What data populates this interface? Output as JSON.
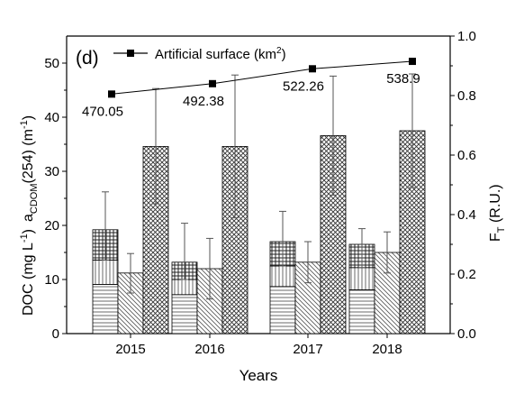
{
  "chart_data": {
    "type": "bar",
    "panel_label": "(d)",
    "categories": [
      "2015",
      "2016",
      "2017",
      "2018"
    ],
    "xlabel": "Years",
    "ylabel_left_top": {
      "main": "a",
      "sub": "CDOM",
      "rest": "(254) (m",
      "sup": "-1",
      "close": ")"
    },
    "ylabel_left_bottom": {
      "main": "DOC  (mg L",
      "sup": "-1",
      "close": ")"
    },
    "ylabel_right": {
      "main": "F",
      "sub": "T",
      "rest": " (R.U.)"
    },
    "ylim_left": [
      0,
      55
    ],
    "ylim_right": [
      0.0,
      1.0
    ],
    "yticks_left": [
      "0",
      "10",
      "20",
      "30",
      "40",
      "50"
    ],
    "yticks_right": [
      "0.0",
      "0.2",
      "0.4",
      "0.6",
      "0.8",
      "1.0"
    ],
    "bars": [
      {
        "year": "2015",
        "stacked": {
          "bottom": 9.1,
          "middle": 13.6,
          "top": 19.2,
          "err_high": 26.2
        },
        "middle_bar": {
          "value": 11.2,
          "err_low": 7.5,
          "err_high": 14.8
        },
        "right_bar": {
          "value": 34.6,
          "err_low": 24.0,
          "err_high": 45.3
        }
      },
      {
        "year": "2016",
        "stacked": {
          "bottom": 7.2,
          "middle": 10.0,
          "top": 13.2,
          "err_high": 20.4
        },
        "middle_bar": {
          "value": 12.0,
          "err_low": 6.4,
          "err_high": 17.6
        },
        "right_bar": {
          "value": 34.6,
          "err_low": 21.4,
          "err_high": 47.8
        }
      },
      {
        "year": "2017",
        "stacked": {
          "bottom": 8.7,
          "middle": 12.5,
          "top": 17.0,
          "err_high": 22.6
        },
        "middle_bar": {
          "value": 13.2,
          "err_low": 9.4,
          "err_high": 17.0
        },
        "right_bar": {
          "value": 36.6,
          "err_low": 25.6,
          "err_high": 47.6
        }
      },
      {
        "year": "2018",
        "stacked": {
          "bottom": 8.1,
          "middle": 12.2,
          "top": 16.5,
          "err_high": 19.4
        },
        "middle_bar": {
          "value": 15.0,
          "err_low": 11.2,
          "err_high": 18.8
        },
        "right_bar": {
          "value": 37.5,
          "err_low": 27.0,
          "err_high": 48.0
        }
      }
    ],
    "line_series": {
      "name": "Artificial surface (km",
      "name_sup": "2",
      "name_close": ")",
      "values_right_axis": [
        0.805,
        0.84,
        0.89,
        0.915
      ],
      "point_labels": [
        "470.05",
        "492.38",
        "522.26",
        "538.9"
      ]
    },
    "colors": {
      "ink": "#000000",
      "background": "#ffffff"
    }
  }
}
